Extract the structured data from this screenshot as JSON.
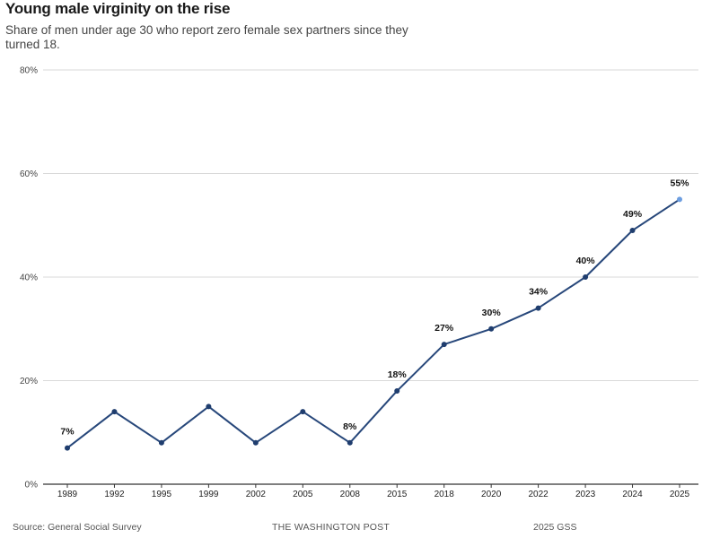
{
  "title": "Young male virginity on the rise",
  "subtitle": "Share of men under age 30 who report zero female sex partners since they turned 18.",
  "footer": {
    "source": "Source: General Social Survey",
    "brand": "THE WASHINGTON POST",
    "note": "2025 GSS"
  },
  "colors": {
    "line": "#27477a",
    "point": "#1f3d6e",
    "last_point": "#6d9ee0",
    "grid": "#d9d9d9",
    "axis": "#333333"
  },
  "chart_data": {
    "type": "line",
    "title": "Young male virginity on the rise",
    "subtitle": "Share of men under age 30 who report zero female sex partners since they turned 18.",
    "xlabel": "",
    "ylabel": "",
    "ylim": [
      0,
      80
    ],
    "yticks": [
      0,
      20,
      40,
      60,
      80
    ],
    "ytick_labels": [
      "0%",
      "20%",
      "40%",
      "60%",
      "80%"
    ],
    "grid": true,
    "categories": [
      "1989",
      "1992",
      "1995",
      "1999",
      "2002",
      "2005",
      "2008",
      "2015",
      "2018",
      "2020",
      "2022",
      "2023",
      "2024",
      "2025"
    ],
    "values": [
      7,
      14,
      8,
      15,
      8,
      14,
      8,
      18,
      27,
      30,
      34,
      40,
      49,
      55
    ],
    "data_labels": [
      {
        "index": 0,
        "text": "7%"
      },
      {
        "index": 6,
        "text": "8%"
      },
      {
        "index": 7,
        "text": "18%"
      },
      {
        "index": 8,
        "text": "27%"
      },
      {
        "index": 9,
        "text": "30%"
      },
      {
        "index": 10,
        "text": "34%"
      },
      {
        "index": 11,
        "text": "40%"
      },
      {
        "index": 12,
        "text": "49%"
      },
      {
        "index": 13,
        "text": "55%"
      }
    ]
  }
}
